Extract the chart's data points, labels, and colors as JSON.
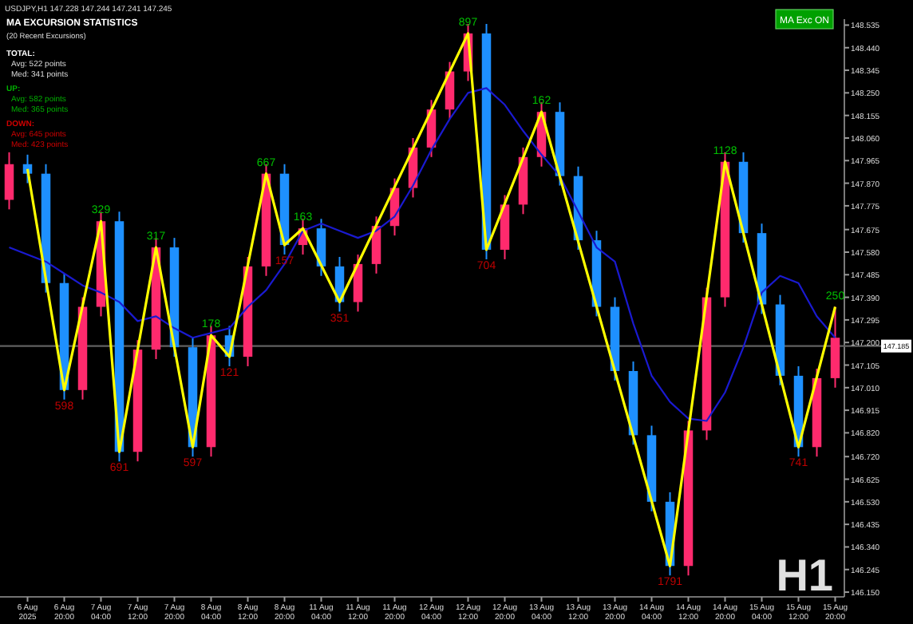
{
  "chart_data": {
    "type": "candlestick",
    "title": "USDJPY,H1 147.228 147.244 147.241 147.245",
    "categories": [
      null,
      "6 Aug 2025",
      null,
      "6 Aug 20:00",
      null,
      "7 Aug 04:00",
      null,
      "7 Aug 12:00",
      null,
      "7 Aug 20:00",
      null,
      "8 Aug 04:00",
      null,
      "8 Aug 12:00",
      null,
      "8 Aug 20:00",
      null,
      "11 Aug 04:00",
      null,
      "11 Aug 12:00",
      null,
      "11 Aug 20:00",
      null,
      "12 Aug 04:00",
      null,
      "12 Aug 12:00",
      null,
      "12 Aug 20:00",
      null,
      "13 Aug 04:00",
      null,
      "13 Aug 12:00",
      null,
      "13 Aug 20:00",
      null,
      "14 Aug 04:00",
      null,
      "14 Aug 12:00",
      null,
      "14 Aug 20:00",
      null,
      "15 Aug 04:00",
      null,
      "15 Aug 12:00",
      null,
      "15 Aug 20:00"
    ],
    "ohlc": [
      [
        147.8,
        148.0,
        147.76,
        147.95
      ],
      [
        147.95,
        147.99,
        147.87,
        147.91
      ],
      [
        147.91,
        147.95,
        147.41,
        147.45
      ],
      [
        147.45,
        147.49,
        146.96,
        147.0
      ],
      [
        147.0,
        147.39,
        146.96,
        147.35
      ],
      [
        147.35,
        147.75,
        147.31,
        147.71
      ],
      [
        147.71,
        147.75,
        146.7,
        146.74
      ],
      [
        146.74,
        147.21,
        146.7,
        147.17
      ],
      [
        147.17,
        147.64,
        147.13,
        147.6
      ],
      [
        147.6,
        147.64,
        147.14,
        147.18
      ],
      [
        147.18,
        147.22,
        146.72,
        146.76
      ],
      [
        146.76,
        147.27,
        146.72,
        147.23
      ],
      [
        147.23,
        147.27,
        147.1,
        147.14
      ],
      [
        147.14,
        147.56,
        147.1,
        147.52
      ],
      [
        147.52,
        147.95,
        147.48,
        147.91
      ],
      [
        147.91,
        147.95,
        147.57,
        147.61
      ],
      [
        147.61,
        147.72,
        147.57,
        147.68
      ],
      [
        147.68,
        147.72,
        147.48,
        147.52
      ],
      [
        147.52,
        147.56,
        147.33,
        147.37
      ],
      [
        147.37,
        147.57,
        147.33,
        147.53
      ],
      [
        147.53,
        147.73,
        147.49,
        147.69
      ],
      [
        147.69,
        147.89,
        147.65,
        147.85
      ],
      [
        147.85,
        148.06,
        147.81,
        148.02
      ],
      [
        148.02,
        148.22,
        147.98,
        148.18
      ],
      [
        148.18,
        148.38,
        148.14,
        148.34
      ],
      [
        148.34,
        148.54,
        148.3,
        148.5
      ],
      [
        148.5,
        148.54,
        147.55,
        147.59
      ],
      [
        147.59,
        147.82,
        147.55,
        147.78
      ],
      [
        147.78,
        148.02,
        147.74,
        147.98
      ],
      [
        147.98,
        148.21,
        147.94,
        148.17
      ],
      [
        148.17,
        148.21,
        147.86,
        147.9
      ],
      [
        147.9,
        147.94,
        147.59,
        147.63
      ],
      [
        147.63,
        147.67,
        147.31,
        147.35
      ],
      [
        147.35,
        147.39,
        147.04,
        147.08
      ],
      [
        147.08,
        147.12,
        146.77,
        146.81
      ],
      [
        146.81,
        146.85,
        146.49,
        146.53
      ],
      [
        146.53,
        146.57,
        146.22,
        146.26
      ],
      [
        146.26,
        146.87,
        146.22,
        146.83
      ],
      [
        146.83,
        147.43,
        146.79,
        147.39
      ],
      [
        147.39,
        148.0,
        147.35,
        147.96
      ],
      [
        147.96,
        148.0,
        147.62,
        147.66
      ],
      [
        147.66,
        147.7,
        147.32,
        147.36
      ],
      [
        147.36,
        147.4,
        147.02,
        147.06
      ],
      [
        147.06,
        147.1,
        146.72,
        146.76
      ],
      [
        146.76,
        147.09,
        146.72,
        147.05
      ],
      [
        147.05,
        147.35,
        147.01,
        147.22
      ]
    ],
    "colors": [
      "#ff2a6d",
      "#1e90ff",
      "#1e90ff",
      "#1e90ff",
      "#ff2a6d",
      "#ff2a6d",
      "#1e90ff",
      "#ff2a6d",
      "#ff2a6d",
      "#1e90ff",
      "#1e90ff",
      "#ff2a6d",
      "#1e90ff",
      "#ff2a6d",
      "#ff2a6d",
      "#1e90ff",
      "#ff2a6d",
      "#1e90ff",
      "#1e90ff",
      "#ff2a6d",
      "#ff2a6d",
      "#ff2a6d",
      "#ff2a6d",
      "#ff2a6d",
      "#ff2a6d",
      "#ff2a6d",
      "#1e90ff",
      "#ff2a6d",
      "#ff2a6d",
      "#ff2a6d",
      "#1e90ff",
      "#1e90ff",
      "#1e90ff",
      "#1e90ff",
      "#1e90ff",
      "#1e90ff",
      "#1e90ff",
      "#ff2a6d",
      "#ff2a6d",
      "#ff2a6d",
      "#1e90ff",
      "#1e90ff",
      "#1e90ff",
      "#1e90ff",
      "#ff2a6d",
      "#ff2a6d"
    ],
    "series": [
      {
        "type": "line",
        "color": "#1a1ad0",
        "values": [
          147.6,
          147.57,
          147.54,
          147.49,
          147.44,
          147.41,
          147.37,
          147.29,
          147.31,
          147.26,
          147.22,
          147.24,
          147.26,
          147.35,
          147.42,
          147.53,
          147.67,
          147.7,
          147.67,
          147.64,
          147.67,
          147.73,
          147.86,
          148.01,
          148.14,
          148.25,
          148.27,
          148.2,
          148.09,
          147.99,
          147.9,
          147.75,
          147.6,
          147.54,
          147.28,
          147.06,
          146.95,
          146.88,
          146.87,
          146.99,
          147.18,
          147.41,
          147.48,
          147.45,
          147.31,
          147.22
        ]
      },
      {
        "type": "line",
        "color": "#ffff00",
        "values": [
          null,
          147.93,
          null,
          147.0,
          null,
          147.71,
          146.74,
          null,
          147.6,
          null,
          146.76,
          147.23,
          147.14,
          null,
          147.91,
          147.61,
          147.68,
          null,
          147.37,
          null,
          null,
          null,
          null,
          null,
          null,
          148.5,
          147.59,
          null,
          null,
          148.17,
          null,
          null,
          null,
          null,
          null,
          null,
          146.26,
          null,
          null,
          147.96,
          null,
          null,
          null,
          146.76,
          null,
          147.35
        ]
      }
    ],
    "ylim": [
      146.13,
      148.56
    ],
    "yticks": [
      148.535,
      {
        "value": 148.44,
        "label": "148.440"
      },
      148.345,
      {
        "value": 148.25,
        "label": "148.250"
      },
      148.155,
      {
        "value": 148.06,
        "label": "148.060"
      },
      147.965,
      {
        "value": 147.87,
        "label": "147.870"
      },
      147.775,
      147.675,
      {
        "value": 147.58,
        "label": "147.580"
      },
      147.485,
      {
        "value": 147.39,
        "label": "147.390"
      },
      147.295,
      {
        "value": 147.2,
        "label": "147.200"
      },
      147.105,
      {
        "value": 147.01,
        "label": "147.010"
      },
      146.915,
      {
        "value": 146.82,
        "label": "146.820"
      },
      {
        "value": 146.72,
        "label": "146.720"
      },
      146.625,
      {
        "value": 146.53,
        "label": "146.530"
      },
      146.435,
      {
        "value": 146.34,
        "label": "146.340"
      },
      146.245,
      {
        "value": 146.15,
        "label": "146.150"
      }
    ],
    "ref_lines": [
      {
        "axis": "y",
        "value": 147.185,
        "label": "147.185",
        "color": "#606060"
      }
    ],
    "annotations": [
      "MA EXCURSION STATISTICS",
      "(20 Recent Excursions)",
      "TOTAL:",
      "Avg: 522 points",
      "Med: 341 points",
      "UP:",
      "Avg: 582 points",
      "Med: 365 points",
      "DOWN:",
      "Avg: 645 points",
      "Med: 423 points",
      "MA Exc ON",
      "H1",
      {
        "text": "598",
        "y": 147.0
      },
      {
        "text": "329",
        "y": 147.71
      },
      {
        "text": "691",
        "y": 146.74
      },
      {
        "text": "317",
        "y": 147.6
      },
      {
        "text": "597",
        "y": 146.76
      },
      {
        "text": "178",
        "y": 147.23
      },
      {
        "text": "121",
        "y": 147.14
      },
      {
        "text": "667",
        "y": 147.91
      },
      {
        "text": "157",
        "y": 147.61
      },
      {
        "text": "163",
        "y": 147.68
      },
      {
        "text": "351",
        "y": 147.37
      },
      {
        "text": "897",
        "y": 148.5
      },
      {
        "text": "704",
        "y": 147.59
      },
      {
        "text": "162",
        "y": 148.17
      },
      {
        "text": "1791",
        "y": 146.26
      },
      {
        "text": "1128",
        "y": 147.96
      },
      {
        "text": "741",
        "y": 146.76
      },
      {
        "text": "250",
        "y": 147.35
      }
    ]
  }
}
